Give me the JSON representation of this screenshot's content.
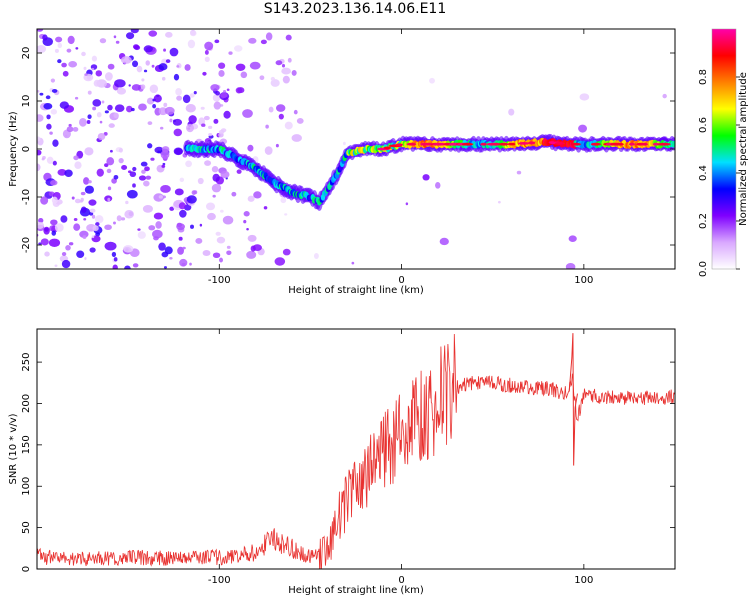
{
  "title": "S143.2023.136.14.06.E11",
  "chart_data": [
    {
      "type": "heatmap",
      "xlabel": "Height of straight line (km)",
      "ylabel": "Frequency (Hz)",
      "xlim": [
        -200,
        150
      ],
      "ylim": [
        -25,
        25
      ],
      "x_ticks": [
        -100,
        0,
        100
      ],
      "y_ticks": [
        -20,
        -10,
        0,
        10,
        20
      ],
      "grid": false,
      "colorbar": {
        "label": "Normalized spectral amplitude",
        "range": [
          0,
          1
        ],
        "ticks": [
          0.0,
          0.2,
          0.4,
          0.6,
          0.8
        ],
        "colors": [
          "#ffffff",
          "#d9a8ff",
          "#7f00ff",
          "#0000ff",
          "#00e0ff",
          "#00ff00",
          "#ffff00",
          "#ff8000",
          "#ff0000",
          "#ff00aa"
        ]
      },
      "ridge": {
        "x": [
          -100,
          -90,
          -80,
          -70,
          -60,
          -50,
          -45,
          -40,
          -35,
          -30,
          -20,
          -10,
          0,
          10,
          30,
          60,
          80,
          90,
          100,
          120,
          150
        ],
        "y": [
          0,
          -2,
          -4,
          -7,
          -9,
          -10,
          -11,
          -8,
          -5,
          -1,
          0,
          0,
          1,
          1,
          1,
          1,
          1.5,
          1,
          1,
          1,
          1
        ]
      }
    },
    {
      "type": "line",
      "xlabel": "Height of straight line (km)",
      "ylabel": "SNR (10 * v/v)",
      "xlim": [
        -200,
        150
      ],
      "ylim": [
        0,
        290
      ],
      "x_ticks": [
        -100,
        0,
        100
      ],
      "y_ticks": [
        0,
        50,
        100,
        150,
        200,
        250
      ],
      "grid": false,
      "series": [
        {
          "color": "#e8312f",
          "x": [
            -200,
            -180,
            -160,
            -140,
            -120,
            -100,
            -90,
            -80,
            -75,
            -70,
            -65,
            -60,
            -55,
            -50,
            -45,
            -40,
            -37,
            -35,
            -30,
            -25,
            -20,
            -15,
            -10,
            -5,
            0,
            5,
            10,
            15,
            20,
            25,
            30,
            40,
            50,
            60,
            70,
            80,
            90,
            94,
            96,
            100,
            110,
            120,
            130,
            140,
            150
          ],
          "y": [
            15,
            12,
            13,
            14,
            12,
            14,
            15,
            20,
            30,
            35,
            28,
            25,
            20,
            15,
            15,
            25,
            45,
            60,
            80,
            100,
            110,
            125,
            140,
            150,
            165,
            175,
            185,
            190,
            205,
            215,
            220,
            225,
            225,
            222,
            220,
            218,
            212,
            230,
            180,
            210,
            208,
            207,
            206,
            207,
            208
          ]
        }
      ],
      "annotations": {
        "spike_peak": {
          "x": 94,
          "y": 285
        },
        "spike_dip": {
          "x": 94,
          "y": 125
        }
      }
    }
  ]
}
